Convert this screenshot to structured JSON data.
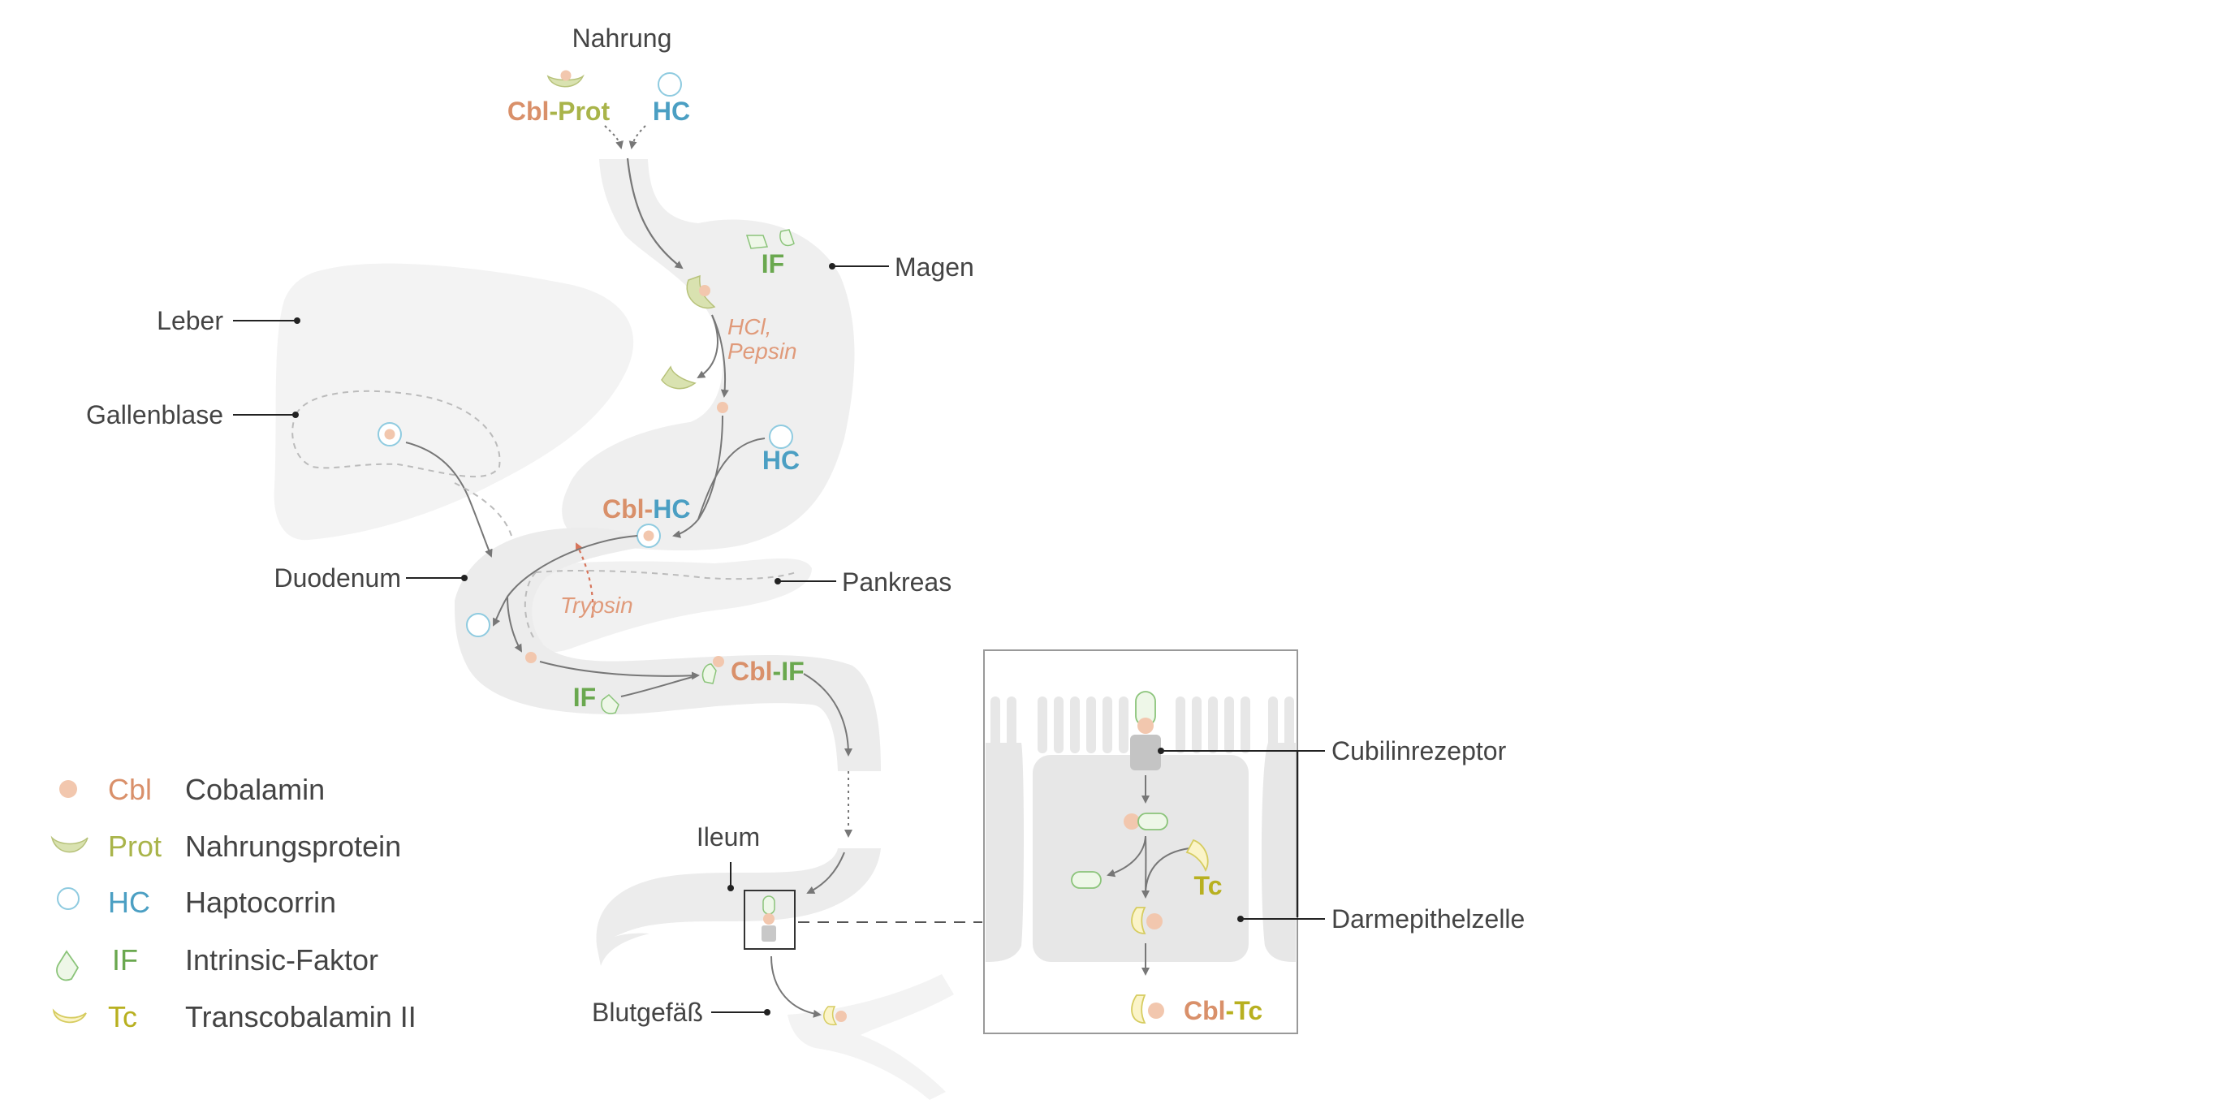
{
  "colors": {
    "cbl": "#d9906a",
    "prot": "#a9b44a",
    "hc": "#4b9fc3",
    "if": "#6aa84f",
    "tc": "#b8b020",
    "enzyme": "#e09a7a",
    "label": "#444444",
    "organ": "#efefef",
    "arrow": "#777777"
  },
  "labels": {
    "nahrung": "Nahrung",
    "cbl_prot": "Cbl-Prot",
    "hc_top": "HC",
    "magen": "Magen",
    "if_magen": "IF",
    "leber": "Leber",
    "gallenblase": "Gallenblase",
    "hcl": "HCl,",
    "pepsin": "Pepsin",
    "hc_stomach": "HC",
    "cbl_hc_cbl": "Cbl",
    "cbl_hc_dash": "-",
    "cbl_hc_hc": "HC",
    "duodenum": "Duodenum",
    "pankreas": "Pankreas",
    "trypsin": "Trypsin",
    "if_duodenum": "IF",
    "cbl_if_cbl": "Cbl",
    "cbl_if_dash": "-",
    "cbl_if_if": "IF",
    "ileum": "Ileum",
    "blutgefaess": "Blutgefäß",
    "cubilinrezeptor": "Cubilinrezeptor",
    "darmepithelzelle": "Darmepithelzelle",
    "tc_cell": "Tc",
    "cbl_tc_cbl": "Cbl",
    "cbl_tc_dash": "-",
    "cbl_tc_tc": "Tc"
  },
  "legend": [
    {
      "icon": "cobalamin-dot-icon",
      "symbol": "Cbl",
      "name": "Cobalamin"
    },
    {
      "icon": "protein-crescent-icon",
      "symbol": "Prot",
      "name": "Nahrungsprotein"
    },
    {
      "icon": "haptocorrin-circle-icon",
      "symbol": "HC",
      "name": "Haptocorrin"
    },
    {
      "icon": "intrinsic-factor-icon",
      "symbol": "IF",
      "name": "Intrinsic-Faktor"
    },
    {
      "icon": "transcobalamin-icon",
      "symbol": "Tc",
      "name": "Transcobalamin II"
    }
  ]
}
